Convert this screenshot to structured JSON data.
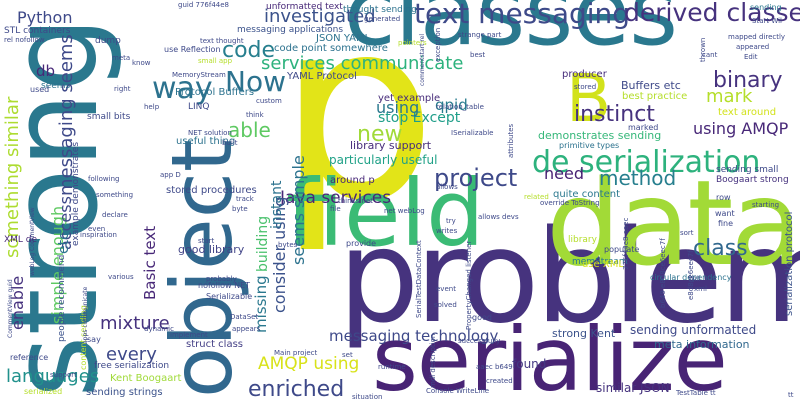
{
  "colors": {
    "background": "#ffffff",
    "palette": [
      "#440154",
      "#482777",
      "#3e4989",
      "#31688e",
      "#26828e",
      "#1f9e89",
      "#35b779",
      "#6ece58",
      "#b5de2b",
      "#fde725"
    ]
  },
  "words": [
    {
      "text": "problem",
      "color": "#46337e"
    },
    {
      "text": "p",
      "color": "#e2e418"
    },
    {
      "text": "classes",
      "color": "#2a788e"
    },
    {
      "text": "serialize",
      "color": "#482475"
    },
    {
      "text": "data",
      "color": "#a2da37"
    },
    {
      "text": "strong",
      "color": "#2a788e"
    },
    {
      "text": "field",
      "color": "#3bbb75"
    },
    {
      "text": "object",
      "color": "#31688e"
    },
    {
      "text": "B",
      "color": "#d2e21b"
    },
    {
      "text": "de serialization",
      "color": "#2db27d"
    },
    {
      "text": "text messaging",
      "color": "#3e4a89"
    },
    {
      "text": "derived classes",
      "color": "#46327e"
    },
    {
      "text": "way",
      "color": "#2c728e"
    },
    {
      "text": "Now",
      "color": "#2c728e"
    },
    {
      "text": "instinct",
      "color": "#46327e"
    },
    {
      "text": "project",
      "color": "#3e4989"
    },
    {
      "text": "enriched",
      "color": "#3e4989"
    },
    {
      "text": "new",
      "color": "#a0da39"
    },
    {
      "text": "binary",
      "color": "#46327e"
    },
    {
      "text": "mark",
      "color": "#b5de2b"
    },
    {
      "text": "method",
      "color": "#277f8e"
    },
    {
      "text": "class",
      "color": "#31688e"
    },
    {
      "text": "need",
      "color": "#482173"
    },
    {
      "text": "code",
      "color": "#277f8e"
    },
    {
      "text": "able",
      "color": "#5ec962"
    },
    {
      "text": "investigated",
      "color": "#3b528b"
    },
    {
      "text": "services communicate",
      "color": "#2db27d"
    },
    {
      "text": "Java services",
      "color": "#482878"
    },
    {
      "text": "something similar",
      "color": "#addc30"
    },
    {
      "text": "messaging seems",
      "color": "#3e4989"
    },
    {
      "text": "seems simple",
      "color": "#2c728e"
    },
    {
      "text": "messaging technology",
      "color": "#3e4989"
    },
    {
      "text": "consider using",
      "color": "#3b528b"
    },
    {
      "text": "AMQP using",
      "color": "#d8e219"
    },
    {
      "text": "using AMQP",
      "color": "#482878"
    },
    {
      "text": "mixture",
      "color": "#46327e"
    },
    {
      "text": "every",
      "color": "#3e4989"
    },
    {
      "text": "languages",
      "color": "#21918c"
    },
    {
      "text": "Basic text",
      "color": "#482878"
    },
    {
      "text": "stop Except",
      "color": "#1f9e89"
    },
    {
      "text": "Python",
      "color": "#3e4989"
    },
    {
      "text": "qpid",
      "color": "#287c8e"
    },
    {
      "text": "using",
      "color": "#2a788e"
    },
    {
      "text": "simple enough",
      "color": "#5ec962"
    },
    {
      "text": "enable",
      "color": "#46327e"
    },
    {
      "text": "access",
      "color": "#3e4989"
    },
    {
      "text": "db",
      "color": "#482878"
    },
    {
      "text": "etc",
      "color": "#2c728e"
    },
    {
      "text": "missing",
      "color": "#2a788e"
    },
    {
      "text": "building",
      "color": "#4ac16d"
    },
    {
      "text": "instant",
      "color": "#2c728e"
    },
    {
      "text": "particularly useful",
      "color": "#1fa187"
    },
    {
      "text": "library support",
      "color": "#472d7b"
    },
    {
      "text": "YAML Protocol",
      "color": "#3e4989"
    },
    {
      "text": "yet example",
      "color": "#472c7a"
    },
    {
      "text": "demonstrates sending",
      "color": "#35b779"
    },
    {
      "text": "Protocol Buffers",
      "color": "#2c728e"
    },
    {
      "text": "messaging applications",
      "color": "#3b528b"
    },
    {
      "text": "JSON YAML",
      "color": "#2c728e"
    },
    {
      "text": "code point somewhere",
      "color": "#2c728e"
    },
    {
      "text": "good library",
      "color": "#414487"
    },
    {
      "text": "stored procedures",
      "color": "#3e4989"
    },
    {
      "text": "Kent Boogaart",
      "color": "#a0da39"
    },
    {
      "text": "sending strings",
      "color": "#3b528b"
    },
    {
      "text": "free serialization",
      "color": "#3e4989"
    },
    {
      "text": "struct class",
      "color": "#433e85"
    },
    {
      "text": "strong Kent",
      "color": "#3b528b"
    },
    {
      "text": "sending unformatted",
      "color": "#3e4989"
    },
    {
      "text": "meta information",
      "color": "#31688e"
    },
    {
      "text": "found",
      "color": "#443983"
    },
    {
      "text": "similar JSON",
      "color": "#46337e"
    },
    {
      "text": "memStream",
      "color": "#2a788e"
    },
    {
      "text": "Buffers etc",
      "color": "#3e4989"
    },
    {
      "text": "best practice",
      "color": "#b5de2b"
    },
    {
      "text": "text around",
      "color": "#d2e21b"
    },
    {
      "text": "producer",
      "color": "#472d7b"
    },
    {
      "text": "quite content",
      "color": "#2a788e"
    },
    {
      "text": "use XML",
      "color": "#d8e219"
    },
    {
      "text": "library",
      "color": "#b5de2b"
    },
    {
      "text": "sending small",
      "color": "#3e4989"
    },
    {
      "text": "Boogaart strong",
      "color": "#46327e"
    },
    {
      "text": "serialization protocol",
      "color": "#3b528b"
    },
    {
      "text": "STL containers",
      "color": "#3e4989"
    },
    {
      "text": "seems",
      "color": "#2c728e"
    },
    {
      "text": "unformatted text",
      "color": "#482878"
    },
    {
      "text": "thought sending",
      "color": "#2c728e"
    },
    {
      "text": "sending",
      "color": "#2a788e"
    },
    {
      "text": "guid 776f44e8",
      "color": "#3e4989"
    },
    {
      "text": "use Reflection",
      "color": "#3e4989"
    },
    {
      "text": "small bits",
      "color": "#3e4989"
    },
    {
      "text": "useful thing",
      "color": "#2c728e"
    },
    {
      "text": "nofollow NET",
      "color": "#3e4989"
    },
    {
      "text": "Serializable",
      "color": "#3e4989"
    },
    {
      "text": "XML de",
      "color": "#482878"
    },
    {
      "text": "people recommend",
      "color": "#3b528b"
    },
    {
      "text": "example demonstrates",
      "color": "#3e4989"
    },
    {
      "text": "content sending",
      "color": "#b5de2b"
    },
    {
      "text": "relation_table",
      "color": "#3e4989"
    },
    {
      "text": "primitive types",
      "color": "#2c728e"
    },
    {
      "text": "circular dependency",
      "color": "#2c728e"
    },
    {
      "text": "provide",
      "color": "#3e4989"
    },
    {
      "text": "around p",
      "color": "#482878"
    },
    {
      "text": "LINQ",
      "color": "#3e4989"
    },
    {
      "text": "Start Wil",
      "color": "#3e4989"
    },
    {
      "text": "mapped directly",
      "color": "#3e4989"
    },
    {
      "text": "Console WriteLine",
      "color": "#3e4989"
    },
    {
      "text": "TestTable tt",
      "color": "#3e4989"
    },
    {
      "text": "aaec b649",
      "color": "#3e4989"
    },
    {
      "text": "set",
      "color": "#3e4989"
    },
    {
      "text": "dump",
      "color": "#3e4989"
    },
    {
      "text": "used",
      "color": "#3e4989"
    },
    {
      "text": "reference",
      "color": "#3e4989"
    },
    {
      "text": "serialized",
      "color": "#b5de2b"
    },
    {
      "text": "say",
      "color": "#3e4989"
    },
    {
      "text": "successfully",
      "color": "#3e4989"
    },
    {
      "text": "solved",
      "color": "#3e4989"
    },
    {
      "text": "allows devs",
      "color": "#3e4989"
    },
    {
      "text": "override ToString",
      "color": "#3e4989"
    },
    {
      "text": "generated",
      "color": "#3e4989"
    },
    {
      "text": "pointers",
      "color": "#b5de2b"
    },
    {
      "text": "strange part",
      "color": "#3e4989"
    },
    {
      "text": "exception",
      "color": "#3e4989"
    },
    {
      "text": "attributes",
      "color": "#3e4989"
    },
    {
      "text": "row",
      "color": "#3e4989"
    },
    {
      "text": "want",
      "color": "#3e4989"
    },
    {
      "text": "fine",
      "color": "#3e4989"
    },
    {
      "text": "starting",
      "color": "#3e4989"
    },
    {
      "text": "populate",
      "color": "#3e4989"
    },
    {
      "text": "marked",
      "color": "#3e4989"
    },
    {
      "text": "related",
      "color": "#b5de2b"
    },
    {
      "text": "runtime",
      "color": "#3e4989"
    },
    {
      "text": "event",
      "color": "#3e4989"
    },
    {
      "text": "good",
      "color": "#3e4989"
    },
    {
      "text": "situation",
      "color": "#3e4989"
    },
    {
      "text": "created",
      "color": "#3e4989"
    },
    {
      "text": "implement",
      "color": "#3e4989"
    },
    {
      "text": "probably",
      "color": "#3e4989"
    },
    {
      "text": "help",
      "color": "#3e4989"
    },
    {
      "text": "custom",
      "color": "#3e4989"
    },
    {
      "text": "think",
      "color": "#3e4989"
    },
    {
      "text": "right",
      "color": "#3e4989"
    },
    {
      "text": "byte",
      "color": "#3e4989"
    },
    {
      "text": "bytes",
      "color": "#3e4989"
    },
    {
      "text": "file",
      "color": "#3e4989"
    },
    {
      "text": "try",
      "color": "#3e4989"
    },
    {
      "text": "Edit",
      "color": "#3e4989"
    },
    {
      "text": "cant",
      "color": "#3e4989"
    },
    {
      "text": "appeared",
      "color": "#3e4989"
    },
    {
      "text": "stored",
      "color": "#3e4989"
    },
    {
      "text": "Will",
      "color": "#3e4989"
    },
    {
      "text": "xml",
      "color": "#3e4989"
    },
    {
      "text": "following",
      "color": "#3e4989"
    },
    {
      "text": "something",
      "color": "#3e4989"
    },
    {
      "text": "declare",
      "color": "#3e4989"
    },
    {
      "text": "inspiration",
      "color": "#3e4989"
    },
    {
      "text": "various",
      "color": "#3e4989"
    },
    {
      "text": "support",
      "color": "#3e4989"
    },
    {
      "text": "DataSet",
      "color": "#3e4989"
    },
    {
      "text": "PropertyChanged listener",
      "color": "#3e4989"
    },
    {
      "text": "SerialTestDataContext",
      "color": "#3e4989"
    },
    {
      "text": "Main project",
      "color": "#3e4989"
    },
    {
      "text": "ISerializable",
      "color": "#3e4989"
    },
    {
      "text": "thinks net",
      "color": "#3e4989"
    },
    {
      "text": "even",
      "color": "#3e4989"
    },
    {
      "text": "start",
      "color": "#3e4989"
    },
    {
      "text": "mdl description",
      "color": "#3e4989"
    },
    {
      "text": "776f44e8 aaec",
      "color": "#3e4989"
    },
    {
      "text": "text thought",
      "color": "#3e4989"
    },
    {
      "text": "NET solution",
      "color": "#3e4989"
    },
    {
      "text": "built",
      "color": "#3e4989"
    },
    {
      "text": "MemoryStream",
      "color": "#3e4989"
    },
    {
      "text": "CommentView guid",
      "color": "#3e4989"
    },
    {
      "text": "apps communicate",
      "color": "#3e4989"
    },
    {
      "text": "commentstart rel",
      "color": "#3e4989"
    },
    {
      "text": "webLog CommentView",
      "color": "#3e4989"
    },
    {
      "text": "b649 e8d8ce6eec7f",
      "color": "#3e4989"
    },
    {
      "text": "e8d8ce6eec7f",
      "color": "#3e4989"
    },
    {
      "text": "thrown",
      "color": "#3e4989"
    },
    {
      "text": "rel nofollow",
      "color": "#3e4989"
    },
    {
      "text": "small app",
      "color": "#b5de2b"
    },
    {
      "text": "best",
      "color": "#3e4989"
    },
    {
      "text": "meta",
      "color": "#3e4989"
    },
    {
      "text": "know",
      "color": "#3e4989"
    },
    {
      "text": "dynamic",
      "color": "#3e4989"
    },
    {
      "text": "appears",
      "color": "#3e4989"
    },
    {
      "text": "app D",
      "color": "#3e4989"
    },
    {
      "text": "track",
      "color": "#3e4989"
    },
    {
      "text": "sort",
      "color": "#3e4989"
    },
    {
      "text": "net webLog",
      "color": "#3e4989"
    },
    {
      "text": "writes",
      "color": "#3e4989"
    },
    {
      "text": "allows",
      "color": "#3e4989"
    },
    {
      "text": "tt",
      "color": "#3e4989"
    }
  ]
}
